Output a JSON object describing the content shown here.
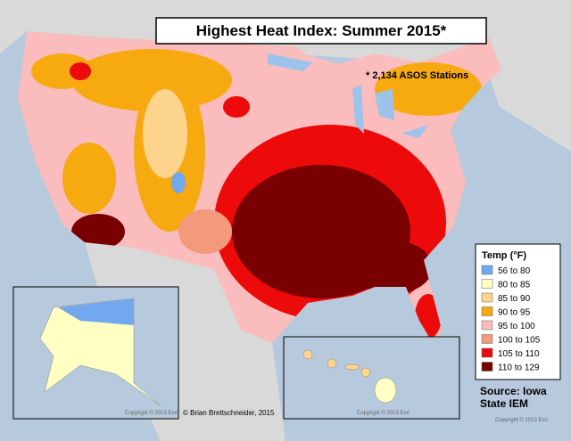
{
  "title": "Highest Heat Index: Summer 2015*",
  "note": "* 2,134 ASOS Stations",
  "legend": {
    "title": "Temp (°F)",
    "items": [
      {
        "label": "56 to 80",
        "color": "#72a8ee"
      },
      {
        "label": "80 to 85",
        "color": "#ffffc4"
      },
      {
        "label": "85 to 90",
        "color": "#fdd48c"
      },
      {
        "label": "90 to 95",
        "color": "#f6aa10"
      },
      {
        "label": "95 to 100",
        "color": "#fabcbc"
      },
      {
        "label": "100 to 105",
        "color": "#f49a7c"
      },
      {
        "label": "105 to 110",
        "color": "#ec0a0a"
      },
      {
        "label": "110 to 129",
        "color": "#780000"
      }
    ]
  },
  "source": "Source: Iowa State IEM",
  "credit": "© Brian Brettschneider, 2015",
  "basemap_credit": "Copyright © 2013 Esri"
}
